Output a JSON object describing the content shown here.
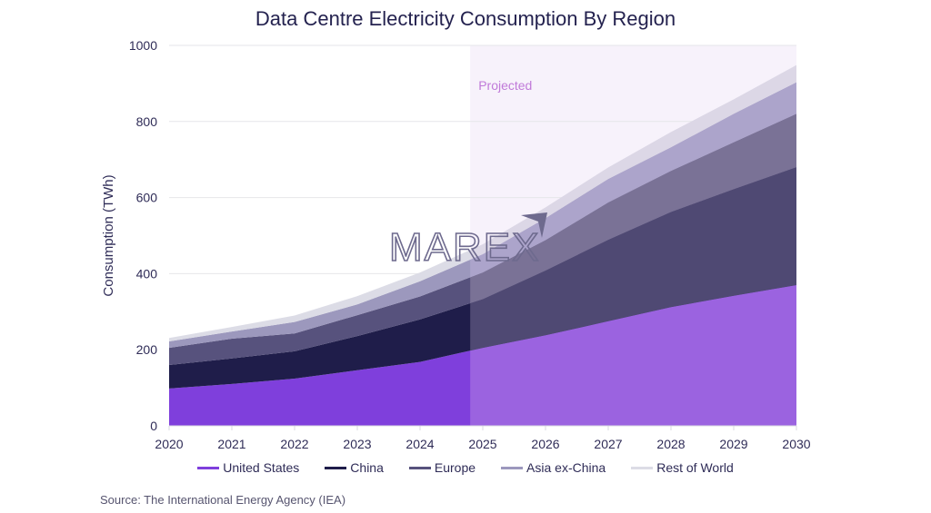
{
  "chart_data": {
    "type": "area",
    "stacked": true,
    "title": "Data Centre Electricity Consumption By Region",
    "xlabel": "",
    "ylabel": "Consumption (TWh)",
    "ylim": [
      0,
      1000
    ],
    "yticks": [
      0,
      200,
      400,
      600,
      800,
      1000
    ],
    "x": [
      "2020",
      "2021",
      "2022",
      "2023",
      "2024",
      "2025",
      "2026",
      "2027",
      "2028",
      "2029",
      "2030"
    ],
    "grid": true,
    "legend_position": "bottom",
    "projected_region": {
      "label": "Projected",
      "from_year": 2024.8,
      "to_year": 2030
    },
    "series": [
      {
        "name": "United States",
        "color": "#7f3fdc",
        "projected_color": "#9b63e0",
        "values": [
          98,
          110,
          124,
          146,
          168,
          205,
          238,
          275,
          312,
          342,
          370
        ]
      },
      {
        "name": "China",
        "color": "#1f1d4a",
        "projected_color": "#4f4973",
        "values": [
          62,
          67,
          72,
          90,
          112,
          128,
          170,
          214,
          250,
          280,
          310
        ]
      },
      {
        "name": "Europe",
        "color": "#57527d",
        "projected_color": "#7a7296",
        "values": [
          45,
          52,
          47,
          55,
          60,
          70,
          80,
          98,
          108,
          123,
          140
        ]
      },
      {
        "name": "Asia ex-China",
        "color": "#9c98bd",
        "projected_color": "#aca4cb",
        "values": [
          17,
          19,
          30,
          28,
          40,
          48,
          58,
          62,
          62,
          75,
          83
        ]
      },
      {
        "name": "Rest of World",
        "color": "#dcdce6",
        "projected_color": "#dcd7e6",
        "values": [
          9,
          12,
          17,
          22,
          23,
          26,
          28,
          30,
          40,
          38,
          45
        ]
      }
    ]
  },
  "watermark": "MAREX",
  "source": "Source: The International Energy Agency (IEA)"
}
